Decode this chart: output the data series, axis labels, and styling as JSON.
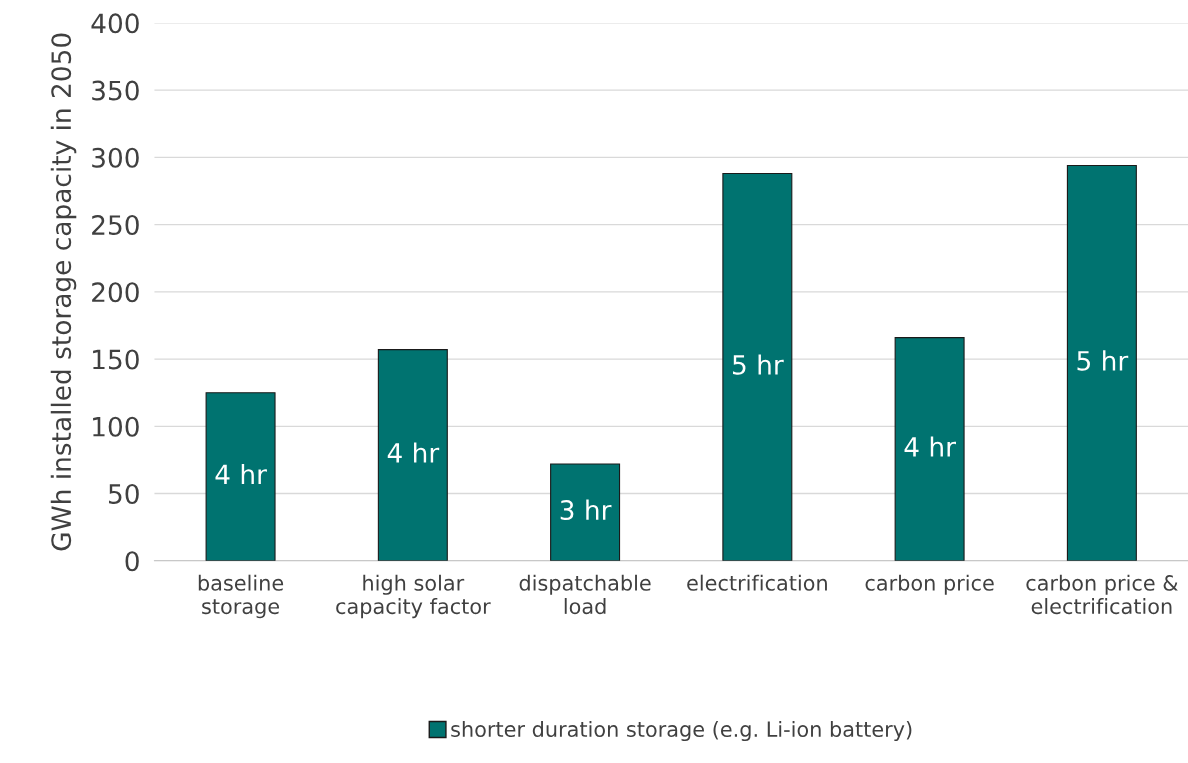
{
  "chart_data": {
    "type": "bar",
    "ylabel": "GWh installed storage capacity in 2050",
    "categories": [
      "baseline\nstorage",
      "high solar\ncapacity factor",
      "dispatchable\nload",
      "electrification",
      "carbon price",
      "carbon price &\nelectrification"
    ],
    "series": [
      {
        "name": "shorter duration storage (e.g. Li-ion battery)",
        "color": "#007370",
        "values": [
          125,
          157,
          72,
          288,
          166,
          294
        ]
      }
    ],
    "annotations": [
      "4 hr",
      "4 hr",
      "3 hr",
      "5 hr",
      "4 hr",
      "5 hr"
    ],
    "ylim": [
      0,
      400
    ],
    "yticks": [
      0,
      50,
      100,
      150,
      200,
      250,
      300,
      350,
      400
    ],
    "grid": "y",
    "legend": "bottom"
  }
}
